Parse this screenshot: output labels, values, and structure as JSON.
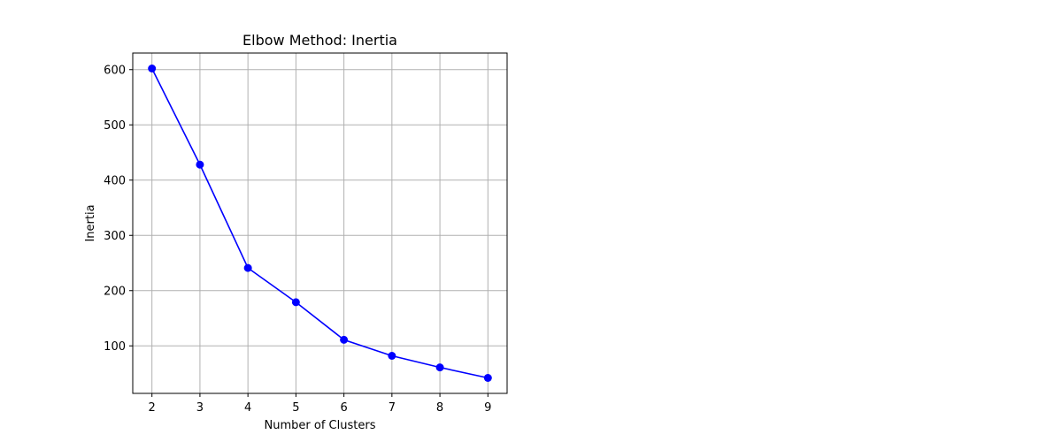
{
  "chart_data": {
    "type": "line",
    "title": "Elbow Method: Inertia",
    "xlabel": "Number of Clusters",
    "ylabel": "Inertia",
    "x": [
      2,
      3,
      4,
      5,
      6,
      7,
      8,
      9
    ],
    "series": [
      {
        "values": [
          602,
          428,
          241,
          179,
          111,
          82,
          61,
          42
        ],
        "color": "#0000ff",
        "marker": "circle"
      }
    ],
    "xticks": [
      2,
      3,
      4,
      5,
      6,
      7,
      8,
      9
    ],
    "yticks": [
      100,
      200,
      300,
      400,
      500,
      600
    ],
    "xlim": [
      1.6,
      9.4
    ],
    "ylim": [
      14,
      630
    ],
    "grid": true
  }
}
